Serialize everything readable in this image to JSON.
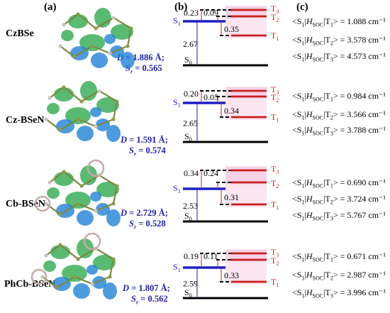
{
  "panels": {
    "a": "(a)",
    "b": "(b)",
    "c": "(c)"
  },
  "molecules": [
    {
      "name": "CzBSe",
      "D": "1.886 Å;",
      "Sr": "0.565",
      "levels": {
        "S1_T3": "0.23",
        "T2_gap": "0.09",
        "T1_gap": "0.35",
        "S0_S1": "2.67"
      },
      "soc": [
        "1.088 cm⁻¹",
        "3.578 cm⁻¹",
        "4.573 cm⁻¹"
      ]
    },
    {
      "name": "Cz-BSeN",
      "D": "1.591 Å;",
      "Sr": "0.574",
      "levels": {
        "S1_T3": "0.20",
        "T2_gap": "0.05",
        "T1_gap": "0.34",
        "S0_S1": "2.65"
      },
      "soc": [
        "0.984 cm⁻¹",
        "3.566 cm⁻¹",
        "3.788 cm⁻¹"
      ]
    },
    {
      "name": "Cb-BSeN",
      "D": "2.729 Å;",
      "Sr": "0.528",
      "levels": {
        "S1_T3": "0.34",
        "T2_gap": "0.24",
        "T1_gap": "0.31",
        "S0_S1": "2.53"
      },
      "soc": [
        "0.690 cm⁻¹",
        "3.724 cm⁻¹",
        "5.767 cm⁻¹"
      ]
    },
    {
      "name": "PhCb-BSeN",
      "D": "1.807 Å;",
      "Sr": "0.562",
      "levels": {
        "S1_T3": "0.19",
        "T2_gap": "0.11",
        "T1_gap": "0.33",
        "S0_S1": "2.59"
      },
      "soc": [
        "0.671 cm⁻¹",
        "2.987 cm⁻¹",
        "3.996 cm⁻¹"
      ]
    }
  ],
  "state_labels": {
    "S0": "S",
    "S1": "S",
    "T1": "T",
    "T2": "T",
    "T3": "T",
    "sub0": "0",
    "sub1": "1",
    "sub2": "2",
    "sub3": "3"
  },
  "soc_terms": [
    "<S",
    "|H",
    "SOC",
    "|T",
    "> = "
  ],
  "param_labels": {
    "D": "D",
    "Sr": "S",
    "Sr_sub": "r"
  },
  "colors": {
    "singlet": "#1e1ec8",
    "triplet": "#c81e1e",
    "highlight": "#f6cfe6",
    "hole": "#2aa84a",
    "electron": "#1a7fd6"
  }
}
